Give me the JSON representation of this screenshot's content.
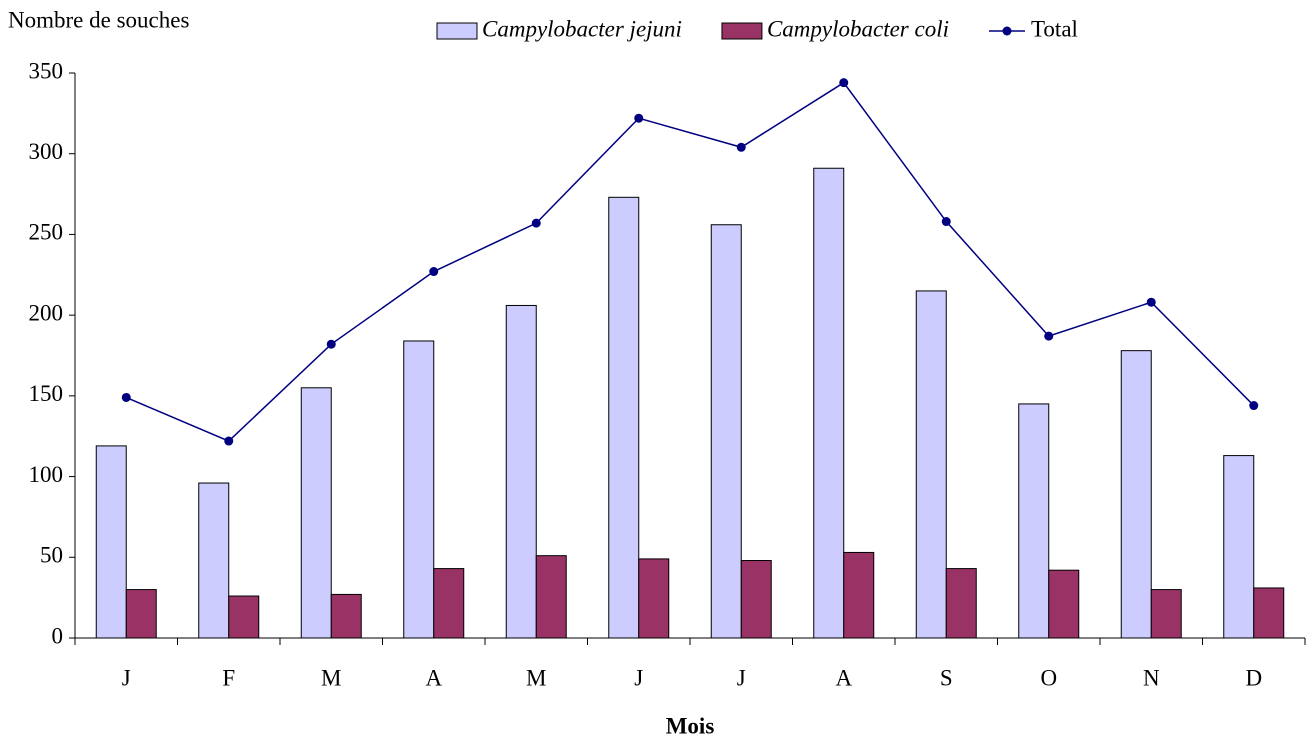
{
  "chart_data": {
    "type": "bar",
    "y_label": "Nombre de souches",
    "x_label": "Mois",
    "categories": [
      "J",
      "F",
      "M",
      "A",
      "M",
      "J",
      "J",
      "A",
      "S",
      "O",
      "N",
      "D"
    ],
    "series": [
      {
        "name": "Campylobacter jejuni",
        "color": "#ccccff",
        "values": [
          119,
          96,
          155,
          184,
          206,
          273,
          256,
          291,
          215,
          145,
          178,
          113
        ]
      },
      {
        "name": "Campylobacter coli",
        "color": "#993366",
        "values": [
          30,
          26,
          27,
          43,
          51,
          49,
          48,
          53,
          43,
          42,
          30,
          31
        ]
      },
      {
        "name": "Total",
        "type": "line",
        "color": "#000080",
        "values": [
          149,
          122,
          182,
          227,
          257,
          322,
          304,
          344,
          258,
          187,
          208,
          144
        ]
      }
    ],
    "ylim": [
      0,
      350
    ],
    "yticks": [
      0,
      50,
      100,
      150,
      200,
      250,
      300,
      350
    ],
    "grid": false,
    "legend": "top"
  }
}
